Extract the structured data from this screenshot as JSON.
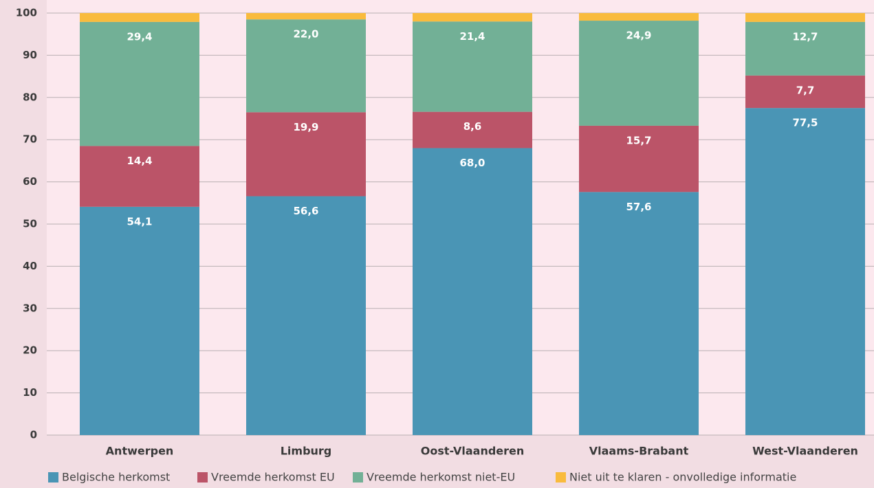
{
  "chart_data": {
    "type": "stacked_bar",
    "categories": [
      "Antwerpen",
      "Limburg",
      "Oost-Vlaanderen",
      "Vlaams-Brabant",
      "West-Vlaanderen"
    ],
    "series": [
      {
        "name": "Belgische herkomst",
        "color": "#4a95b5",
        "values": [
          54.1,
          56.6,
          68.0,
          57.6,
          77.5
        ],
        "value_labels": [
          "54,1",
          "56,6",
          "68,0",
          "57,6",
          "77,5"
        ]
      },
      {
        "name": "Vreemde herkomst EU",
        "color": "#bb5468",
        "values": [
          14.4,
          19.9,
          8.6,
          15.7,
          7.7
        ],
        "value_labels": [
          "14,4",
          "19,9",
          "8,6",
          "15,7",
          "7,7"
        ]
      },
      {
        "name": "Vreemde herkomst niet-EU",
        "color": "#72b096",
        "values": [
          29.4,
          22.0,
          21.4,
          24.9,
          12.7
        ],
        "value_labels": [
          "29,4",
          "22,0",
          "21,4",
          "24,9",
          "12,7"
        ]
      },
      {
        "name": "Niet uit te klaren - onvolledige informatie",
        "color": "#f9bb3d",
        "values": [
          2.1,
          1.5,
          2.0,
          1.8,
          2.1
        ]
      }
    ],
    "ylim": [
      0,
      100
    ],
    "yticks": [
      0,
      10,
      20,
      30,
      40,
      50,
      60,
      70,
      80,
      90,
      100
    ],
    "grid": true
  }
}
